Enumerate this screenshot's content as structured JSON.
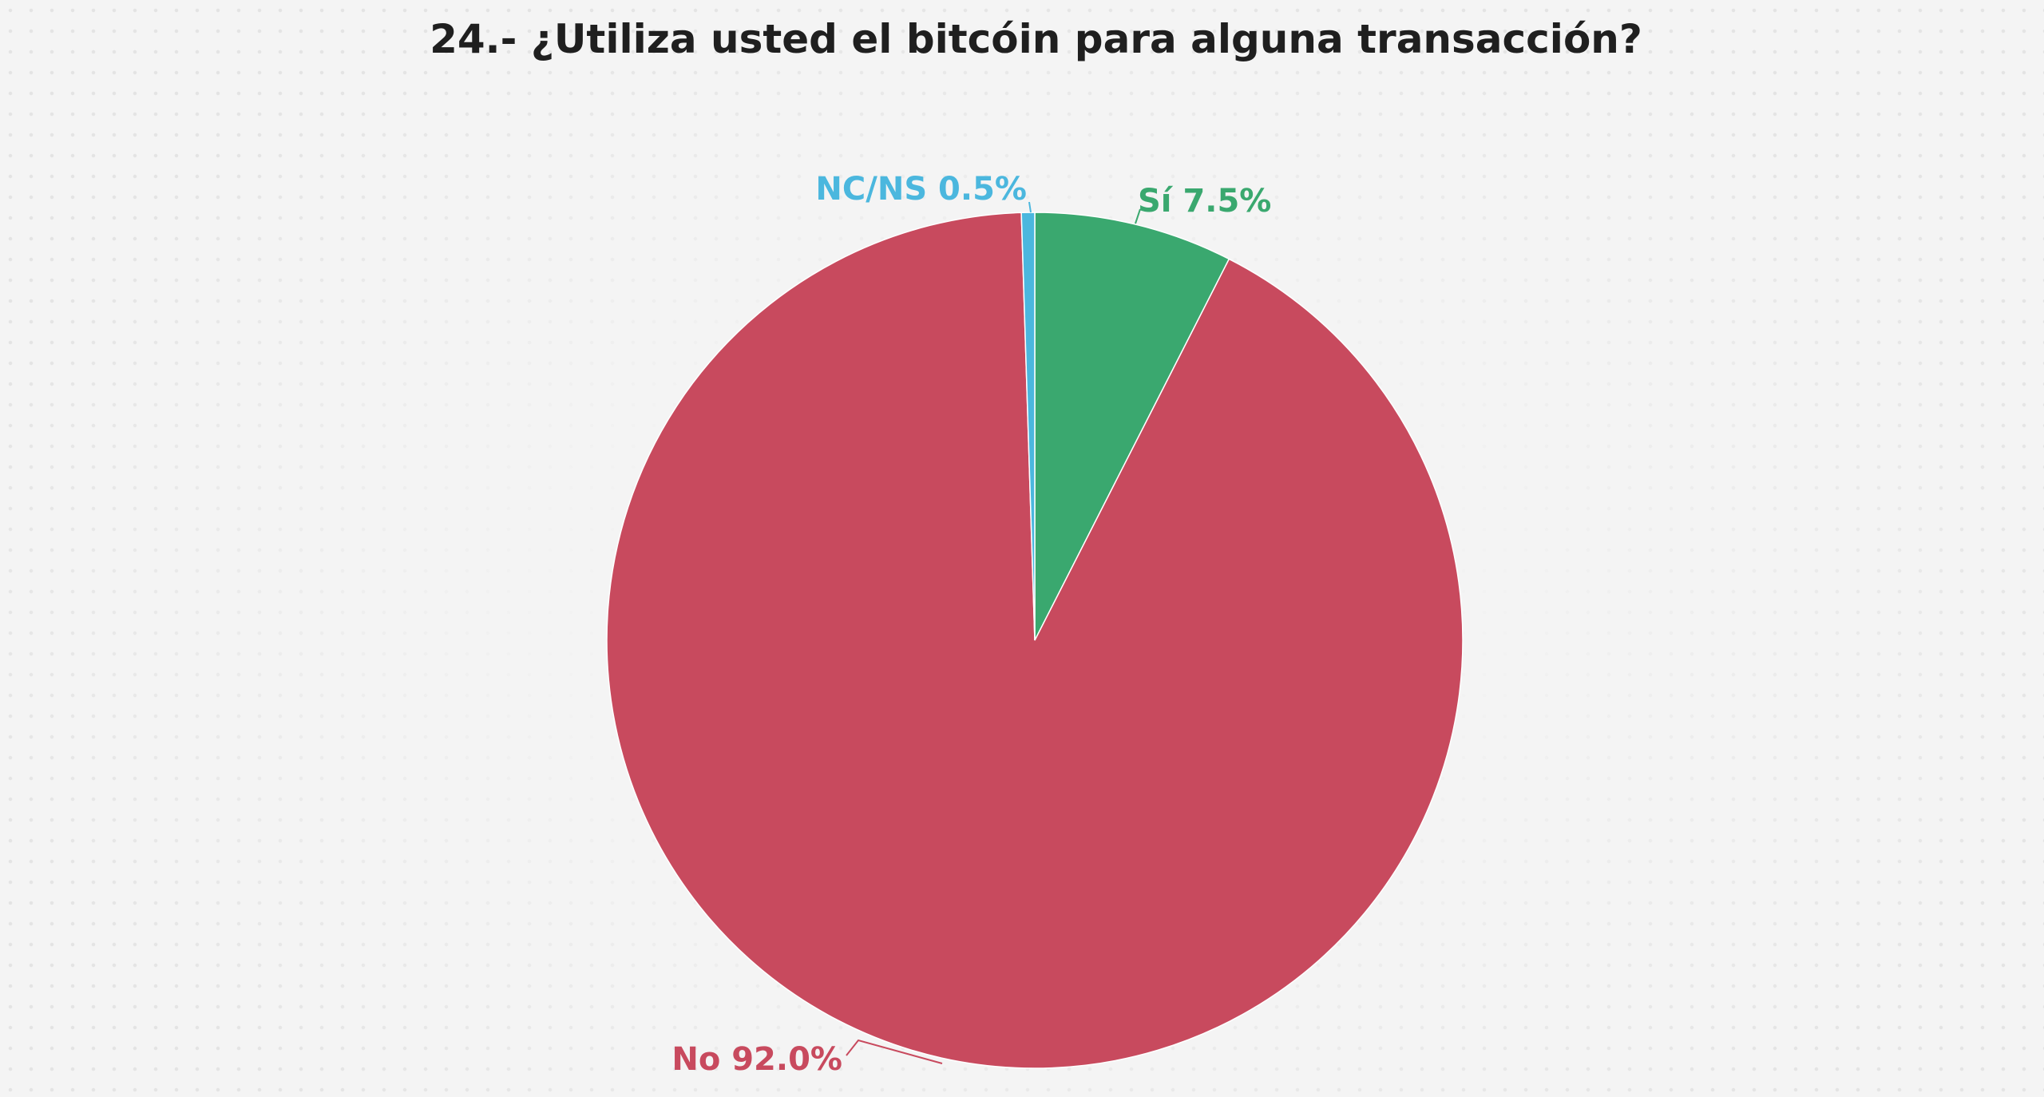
{
  "chart_data": {
    "type": "pie",
    "title": "24.- ¿Utiliza usted el bitcóin para alguna transacción?",
    "slices": [
      {
        "label": "Sí",
        "value": 7.5,
        "value_label": "7.5%",
        "color": "#3aa86f"
      },
      {
        "label": "No",
        "value": 92.0,
        "value_label": "92.0%",
        "color": "#c84a5e"
      },
      {
        "label": "NC/NS",
        "value": 0.5,
        "value_label": "0.5%",
        "color": "#4bb7de"
      }
    ],
    "start_angle_deg": 0,
    "direction": "clockwise"
  }
}
